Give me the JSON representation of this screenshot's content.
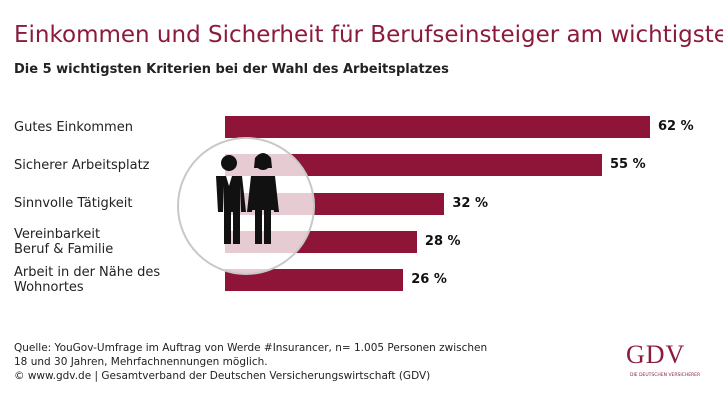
{
  "chart_data": {
    "type": "bar",
    "title": "Einkommen und Sicherheit für Berufseinsteiger am wichtigsten",
    "subtitle": "Die 5 wichtigsten Kriterien bei der Wahl des Arbeitsplatzes",
    "categories": [
      "Gutes Einkommen",
      "Sicherer Arbeitsplatz",
      "Sinnvolle Tätigkeit",
      "Vereinbarkeit\nBeruf & Familie",
      "Arbeit in der Nähe des\nWohnortes"
    ],
    "values": [
      62,
      55,
      32,
      28,
      26
    ],
    "value_labels": [
      "62 %",
      "55 %",
      "32 %",
      "28 %",
      "26 %"
    ],
    "color": "#8e1538",
    "source": "Quelle: YouGov-Umfrage im Auftrag von Werde #Insurancer, n= 1.005 Personen zwischen\n18 und 30 Jahren, Mehrfachnennungen möglich.",
    "copyright": "© www.gdv.de | Gesamtverband der Deutschen Versicherungswirtschaft (GDV)"
  },
  "logo": {
    "text": "GDV",
    "tagline": "DIE DEUTSCHEN VERSICHERER"
  }
}
